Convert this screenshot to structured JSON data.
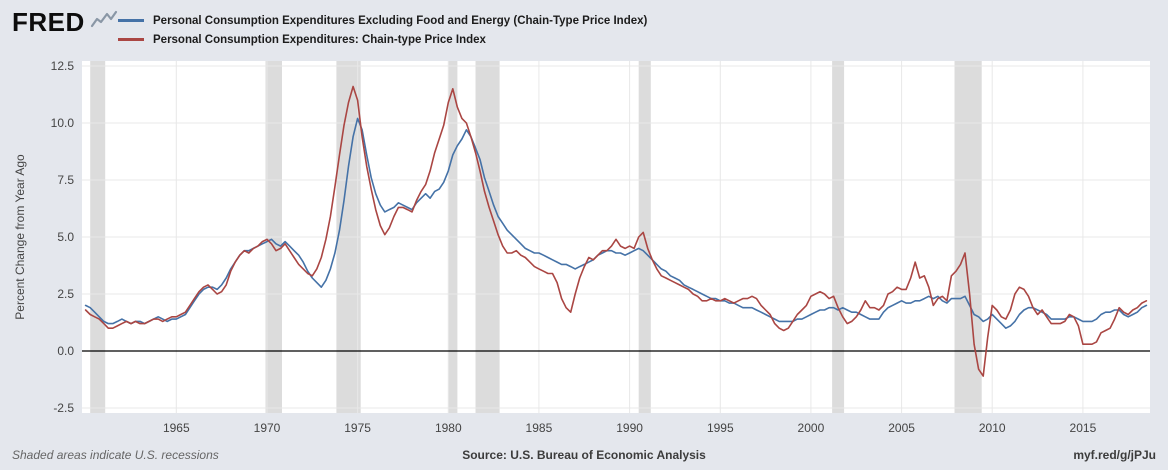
{
  "header": {
    "logo_text": "FRED",
    "logo_icon": "chart-squiggle-icon",
    "legend": [
      {
        "label": "Personal Consumption Expenditures Excluding Food and Energy (Chain-Type Price Index)",
        "color": "#4572a7"
      },
      {
        "label": "Personal Consumption Expenditures: Chain-type Price Index",
        "color": "#aa4643"
      }
    ]
  },
  "footer": {
    "recession_note": "Shaded areas indicate U.S. recessions",
    "source": "Source: U.S. Bureau of Economic Analysis",
    "short_url": "myf.red/g/jPJu"
  },
  "chart_data": {
    "type": "line",
    "title": "",
    "xlabel": "",
    "ylabel": "Percent Change from Year Ago",
    "xlim": [
      1959.8,
      2018.7
    ],
    "ylim": [
      -2.5,
      12.5
    ],
    "y_ticks": [
      -2.5,
      0.0,
      2.5,
      5.0,
      7.5,
      10.0,
      12.5
    ],
    "x_ticks": [
      1965,
      1970,
      1975,
      1980,
      1985,
      1990,
      1995,
      2000,
      2005,
      2010,
      2015
    ],
    "grid": true,
    "zero_line": true,
    "legend_position": "top",
    "x_start": 1960.0,
    "x_step": 0.25,
    "colors": {
      "frame_background": "#e4e7ed",
      "plot_background": "#ffffff",
      "recession": "#dcdcdc",
      "grid": "#e8e8e8",
      "zero_line": "#000000",
      "text": "#444444"
    },
    "recessions": [
      [
        1960.25,
        1961.08
      ],
      [
        1969.92,
        1970.83
      ],
      [
        1973.83,
        1975.17
      ],
      [
        1980.0,
        1980.5
      ],
      [
        1981.5,
        1982.83
      ],
      [
        1990.5,
        1991.17
      ],
      [
        2001.17,
        2001.83
      ],
      [
        2007.92,
        2009.42
      ]
    ],
    "series": [
      {
        "name": "Personal Consumption Expenditures Excluding Food and Energy (Chain-Type Price Index)",
        "color": "#4572a7",
        "values": [
          2.0,
          1.9,
          1.7,
          1.5,
          1.3,
          1.2,
          1.2,
          1.3,
          1.4,
          1.3,
          1.2,
          1.3,
          1.3,
          1.2,
          1.3,
          1.4,
          1.5,
          1.4,
          1.3,
          1.4,
          1.4,
          1.5,
          1.6,
          1.9,
          2.2,
          2.5,
          2.7,
          2.8,
          2.8,
          2.7,
          2.9,
          3.2,
          3.6,
          3.9,
          4.2,
          4.4,
          4.4,
          4.5,
          4.6,
          4.7,
          4.8,
          4.9,
          4.7,
          4.6,
          4.8,
          4.6,
          4.4,
          4.2,
          3.9,
          3.5,
          3.2,
          3.0,
          2.8,
          3.1,
          3.6,
          4.3,
          5.3,
          6.6,
          8.1,
          9.4,
          10.2,
          9.7,
          8.6,
          7.6,
          6.9,
          6.4,
          6.1,
          6.2,
          6.3,
          6.5,
          6.4,
          6.3,
          6.2,
          6.5,
          6.7,
          6.9,
          6.7,
          7.0,
          7.1,
          7.4,
          7.9,
          8.6,
          9.0,
          9.3,
          9.7,
          9.4,
          8.9,
          8.4,
          7.6,
          7.0,
          6.4,
          5.9,
          5.6,
          5.3,
          5.1,
          4.9,
          4.7,
          4.5,
          4.4,
          4.3,
          4.3,
          4.2,
          4.1,
          4.0,
          3.9,
          3.8,
          3.8,
          3.7,
          3.6,
          3.7,
          3.8,
          3.9,
          4.0,
          4.2,
          4.3,
          4.4,
          4.4,
          4.3,
          4.3,
          4.2,
          4.3,
          4.4,
          4.5,
          4.4,
          4.2,
          4.0,
          3.8,
          3.6,
          3.5,
          3.3,
          3.2,
          3.1,
          2.9,
          2.8,
          2.7,
          2.6,
          2.5,
          2.4,
          2.3,
          2.3,
          2.2,
          2.2,
          2.1,
          2.1,
          2.0,
          1.9,
          1.9,
          1.9,
          1.8,
          1.7,
          1.6,
          1.5,
          1.4,
          1.3,
          1.3,
          1.3,
          1.3,
          1.4,
          1.4,
          1.5,
          1.6,
          1.7,
          1.8,
          1.8,
          1.9,
          1.9,
          1.8,
          1.9,
          1.8,
          1.7,
          1.7,
          1.6,
          1.5,
          1.4,
          1.4,
          1.4,
          1.7,
          1.9,
          2.0,
          2.1,
          2.2,
          2.1,
          2.1,
          2.2,
          2.2,
          2.3,
          2.4,
          2.3,
          2.4,
          2.2,
          2.1,
          2.3,
          2.3,
          2.3,
          2.4,
          2.0,
          1.6,
          1.5,
          1.3,
          1.4,
          1.6,
          1.4,
          1.2,
          1.0,
          1.1,
          1.3,
          1.6,
          1.8,
          1.9,
          1.9,
          1.8,
          1.7,
          1.6,
          1.4,
          1.4,
          1.4,
          1.4,
          1.5,
          1.5,
          1.4,
          1.3,
          1.3,
          1.3,
          1.4,
          1.6,
          1.7,
          1.7,
          1.8,
          1.8,
          1.6,
          1.5,
          1.6,
          1.7,
          1.9,
          2.0
        ]
      },
      {
        "name": "Personal Consumption Expenditures: Chain-type Price Index",
        "color": "#aa4643",
        "values": [
          1.8,
          1.6,
          1.5,
          1.4,
          1.2,
          1.0,
          1.0,
          1.1,
          1.2,
          1.3,
          1.2,
          1.3,
          1.2,
          1.2,
          1.3,
          1.4,
          1.4,
          1.3,
          1.4,
          1.5,
          1.5,
          1.6,
          1.7,
          2.0,
          2.3,
          2.6,
          2.8,
          2.9,
          2.7,
          2.5,
          2.6,
          2.9,
          3.5,
          3.9,
          4.2,
          4.4,
          4.3,
          4.5,
          4.6,
          4.8,
          4.9,
          4.7,
          4.4,
          4.5,
          4.7,
          4.4,
          4.1,
          3.8,
          3.6,
          3.4,
          3.3,
          3.6,
          4.1,
          4.9,
          5.9,
          7.2,
          8.6,
          9.9,
          10.9,
          11.6,
          11.0,
          9.4,
          8.1,
          7.1,
          6.2,
          5.5,
          5.1,
          5.4,
          5.9,
          6.3,
          6.3,
          6.2,
          6.1,
          6.6,
          7.0,
          7.3,
          7.9,
          8.7,
          9.3,
          9.9,
          10.9,
          11.5,
          10.7,
          10.2,
          10.0,
          9.4,
          8.7,
          7.9,
          7.0,
          6.3,
          5.7,
          5.1,
          4.6,
          4.3,
          4.3,
          4.4,
          4.2,
          4.1,
          3.9,
          3.7,
          3.6,
          3.5,
          3.4,
          3.4,
          3.0,
          2.3,
          1.9,
          1.7,
          2.5,
          3.2,
          3.7,
          4.1,
          4.0,
          4.2,
          4.4,
          4.4,
          4.6,
          4.9,
          4.6,
          4.5,
          4.6,
          4.5,
          5.0,
          5.2,
          4.5,
          4.0,
          3.6,
          3.3,
          3.2,
          3.1,
          3.0,
          2.9,
          2.8,
          2.7,
          2.5,
          2.4,
          2.2,
          2.2,
          2.3,
          2.2,
          2.2,
          2.3,
          2.2,
          2.1,
          2.2,
          2.3,
          2.3,
          2.4,
          2.3,
          2.0,
          1.8,
          1.6,
          1.2,
          1.0,
          0.9,
          1.0,
          1.3,
          1.6,
          1.8,
          2.0,
          2.4,
          2.5,
          2.6,
          2.5,
          2.3,
          2.4,
          1.9,
          1.5,
          1.2,
          1.3,
          1.5,
          1.8,
          2.2,
          1.9,
          1.9,
          1.8,
          2.0,
          2.5,
          2.6,
          2.8,
          2.7,
          2.7,
          3.2,
          3.9,
          3.2,
          3.3,
          2.8,
          2.0,
          2.3,
          2.4,
          2.2,
          3.3,
          3.5,
          3.8,
          4.3,
          2.5,
          0.3,
          -0.8,
          -1.1,
          0.6,
          2.0,
          1.8,
          1.5,
          1.4,
          1.8,
          2.5,
          2.8,
          2.7,
          2.4,
          1.9,
          1.6,
          1.8,
          1.5,
          1.2,
          1.2,
          1.2,
          1.3,
          1.6,
          1.5,
          1.1,
          0.3,
          0.3,
          0.3,
          0.4,
          0.8,
          0.9,
          1.0,
          1.4,
          1.9,
          1.7,
          1.6,
          1.8,
          1.9,
          2.1,
          2.2
        ]
      }
    ]
  }
}
